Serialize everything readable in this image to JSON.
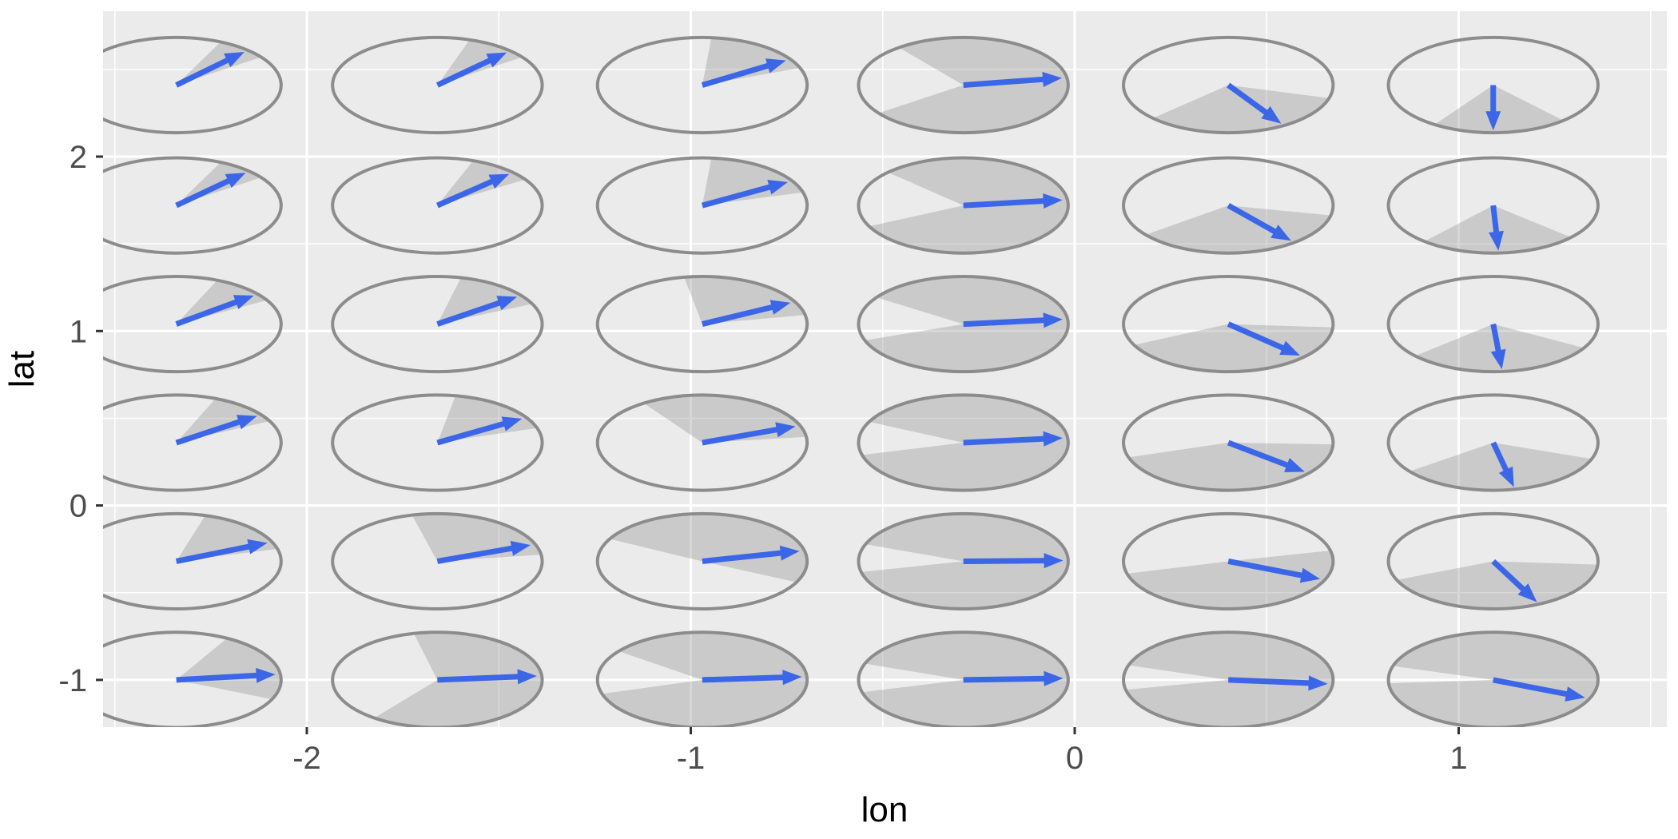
{
  "chart_data": {
    "type": "scatter",
    "subtype": "glyph-map-direction-uncertainty",
    "title": "",
    "xlabel": "lon",
    "ylabel": "lat",
    "x_ticks": [
      -2,
      -1,
      0,
      1
    ],
    "y_ticks": [
      2,
      1,
      0,
      -1
    ],
    "x_minor_ticks": [
      -2.5,
      -1.5,
      -0.5,
      0.5,
      1.5
    ],
    "y_minor_ticks": [
      2.5,
      1.5,
      0.5,
      -0.5
    ],
    "xlim": [
      -2.53,
      1.54
    ],
    "ylim": [
      -1.27,
      2.83
    ],
    "grid": true,
    "legend_position": "none",
    "glyph_radius_data_units": 0.273,
    "arrow_length_data_units": 0.26,
    "lon_values": [
      -2.34,
      -1.66,
      -0.97,
      -0.29,
      0.4,
      1.09
    ],
    "lat_values": [
      2.41,
      1.72,
      1.04,
      0.36,
      -0.32,
      -1.0
    ],
    "glyph_description": "Each glyph: grey circle outline (circle in data units), grey sector = angular uncertainty wedge, blue arrow = direction estimate. Angles in degrees, 0 = East, counterclockwise positive.",
    "glyphs": [
      {
        "lon": -2.34,
        "lat": 2.41,
        "dir": 47,
        "wedge": [
          36,
          65
        ]
      },
      {
        "lon": -1.66,
        "lat": 2.41,
        "dir": 46,
        "wedge": [
          36,
          72
        ]
      },
      {
        "lon": -0.97,
        "lat": 2.41,
        "dir": 33,
        "wedge": [
          21,
          85
        ]
      },
      {
        "lon": -0.29,
        "lat": 2.41,
        "dir": 9,
        "wedge": [
          -144,
          128
        ]
      },
      {
        "lon": 0.4,
        "lat": 2.41,
        "dir": -58,
        "wedge": [
          -136,
          -16
        ]
      },
      {
        "lon": 1.09,
        "lat": 2.41,
        "dir": -90,
        "wedge": [
          -124,
          -48
        ]
      },
      {
        "lon": -2.34,
        "lat": 1.72,
        "dir": 46,
        "wedge": [
          36,
          65
        ]
      },
      {
        "lon": -1.66,
        "lat": 1.72,
        "dir": 44,
        "wedge": [
          33,
          70
        ]
      },
      {
        "lon": -0.97,
        "lat": 1.72,
        "dir": 31,
        "wedge": [
          16,
          85
        ]
      },
      {
        "lon": -0.29,
        "lat": 1.72,
        "dir": 7,
        "wedge": [
          -154,
          136
        ]
      },
      {
        "lon": 0.4,
        "lat": 1.72,
        "dir": -51,
        "wedge": [
          -142,
          -12
        ]
      },
      {
        "lon": 1.09,
        "lat": 1.72,
        "dir": -87,
        "wedge": [
          -131,
          -42
        ]
      },
      {
        "lon": -2.34,
        "lat": 1.04,
        "dir": 39,
        "wedge": [
          30,
          67
        ]
      },
      {
        "lon": -1.66,
        "lat": 1.04,
        "dir": 37,
        "wedge": [
          25,
          77
        ]
      },
      {
        "lon": -0.97,
        "lat": 1.04,
        "dir": 28,
        "wedge": [
          11,
          100
        ]
      },
      {
        "lon": -0.29,
        "lat": 1.04,
        "dir": 6,
        "wedge": [
          -160,
          146
        ]
      },
      {
        "lon": 0.4,
        "lat": 1.04,
        "dir": -44,
        "wedge": [
          -154,
          -4
        ]
      },
      {
        "lon": 1.09,
        "lat": 1.04,
        "dir": -85,
        "wedge": [
          -138,
          -30
        ]
      },
      {
        "lon": -2.34,
        "lat": 0.36,
        "dir": 36,
        "wedge": [
          27,
          68
        ]
      },
      {
        "lon": -1.66,
        "lat": 0.36,
        "dir": 32,
        "wedge": [
          18,
          80
        ]
      },
      {
        "lon": -0.97,
        "lat": 0.36,
        "dir": 21,
        "wedge": [
          7,
          124
        ]
      },
      {
        "lon": -0.29,
        "lat": 0.36,
        "dir": 6,
        "wedge": [
          -165,
          154
        ]
      },
      {
        "lon": 0.4,
        "lat": 0.36,
        "dir": -40,
        "wedge": [
          -162,
          -2
        ]
      },
      {
        "lon": 1.09,
        "lat": 0.36,
        "dir": -78,
        "wedge": [
          -143,
          -20
        ]
      },
      {
        "lon": -2.34,
        "lat": -0.32,
        "dir": 24,
        "wedge": [
          15,
          74
        ]
      },
      {
        "lon": -1.66,
        "lat": -0.32,
        "dir": 21,
        "wedge": [
          8,
          104
        ]
      },
      {
        "lon": -0.97,
        "lat": -0.32,
        "dir": 13,
        "wedge": [
          -26,
          152
        ]
      },
      {
        "lon": -0.29,
        "lat": -0.32,
        "dir": 1,
        "wedge": [
          -167,
          159
        ]
      },
      {
        "lon": 0.4,
        "lat": -0.32,
        "dir": -23,
        "wedge": [
          -165,
          13
        ]
      },
      {
        "lon": 1.09,
        "lat": -0.32,
        "dir": -64,
        "wedge": [
          -157,
          -4
        ]
      },
      {
        "lon": -2.34,
        "lat": -1.0,
        "dir": 7,
        "wedge": [
          -24,
          61
        ]
      },
      {
        "lon": -1.66,
        "lat": -1.0,
        "dir": 5,
        "wedge": [
          -127,
          103
        ]
      },
      {
        "lon": -0.97,
        "lat": -1.0,
        "dir": 4,
        "wedge": [
          -163,
          143
        ]
      },
      {
        "lon": -0.29,
        "lat": -1.0,
        "dir": 2,
        "wedge": [
          -165,
          160
        ]
      },
      {
        "lon": 0.4,
        "lat": -1.0,
        "dir": -5,
        "wedge": [
          -168,
          162
        ]
      },
      {
        "lon": 1.09,
        "lat": -1.0,
        "dir": -23,
        "wedge": [
          -176,
          163
        ]
      }
    ]
  },
  "axes": {
    "x_title": "lon",
    "y_title": "lat",
    "x_tick_labels": [
      "-2",
      "-1",
      "0",
      "1"
    ],
    "y_tick_labels": [
      "2",
      "1",
      "0",
      "-1"
    ]
  },
  "colors": {
    "panel_background": "#EBEBEB",
    "gridline": "#FFFFFF",
    "circle_outline": "#8C8C8C",
    "wedge_fill_rgba": "rgba(141,141,141,0.35)",
    "arrow_blue": "#3C66E8",
    "tick_text": "#4D4D4D",
    "axis_title_text": "#000000",
    "tick_mark": "#333333",
    "outer_background": "#FFFFFF"
  }
}
